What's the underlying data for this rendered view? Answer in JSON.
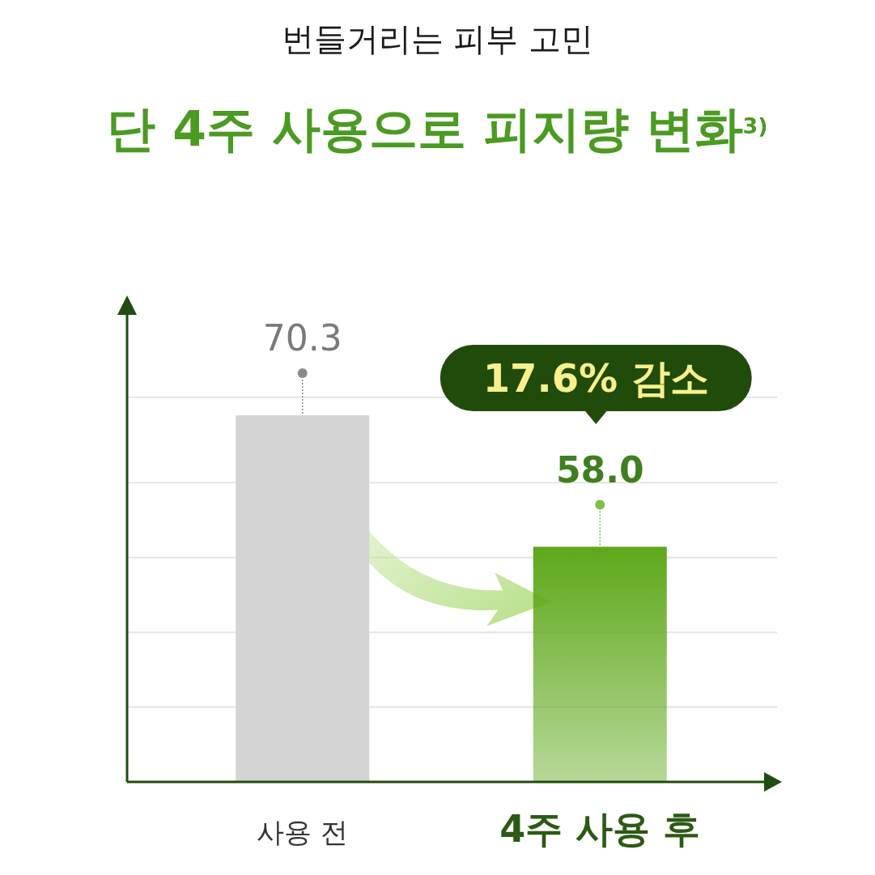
{
  "chart_data": {
    "type": "bar",
    "title": "번들거리는 피부 고민",
    "subtitle": "단 4주 사용으로 피지량 변화$^{3)}$",
    "categories": [
      "사용 전",
      "4주 사용 후"
    ],
    "values": [
      70.3,
      58.0
    ],
    "colors": [
      "#d4d4d4",
      "#5ea81a"
    ],
    "value_labels": [
      "70.3",
      "58.0"
    ],
    "ylim": [
      36,
      80
    ],
    "yticks": [
      {
        "value": 43,
        "label": null
      },
      {
        "value": 50,
        "label": null
      },
      {
        "value": 57,
        "label": null
      },
      {
        "value": 64,
        "label": null
      },
      {
        "value": 72,
        "label": null
      }
    ],
    "grid": "y",
    "annotations": [
      "17.6% 감소"
    ]
  }
}
